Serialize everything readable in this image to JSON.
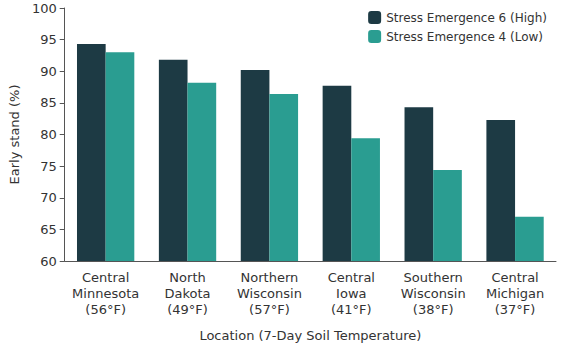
{
  "chart_data": {
    "type": "bar",
    "x_label": "Location (7-Day Soil Temperature)",
    "y_label": "Early stand (%)",
    "categories": [
      "Central\nMinnesota\n(56°F)",
      "North\nDakota\n(49°F)",
      "Northern\nWisconsin\n(57°F)",
      "Central\nIowa\n(41°F)",
      "Southern\nWisconsin\n(38°F)",
      "Central\nMichigan\n(37°F)"
    ],
    "series": [
      {
        "name": "Stress Emergence 6 (High)",
        "color": "#1d3a44",
        "values": [
          94.3,
          91.8,
          90.2,
          87.7,
          84.3,
          82.3
        ]
      },
      {
        "name": "Stress Emergence 4 (Low)",
        "color": "#2a9d91",
        "values": [
          93.0,
          88.2,
          86.4,
          79.4,
          74.4,
          67.0
        ]
      }
    ],
    "ylim": [
      60,
      100
    ],
    "yticks": [
      60,
      65,
      70,
      75,
      80,
      85,
      90,
      95,
      100
    ],
    "grid": false,
    "legend": "upper right"
  }
}
